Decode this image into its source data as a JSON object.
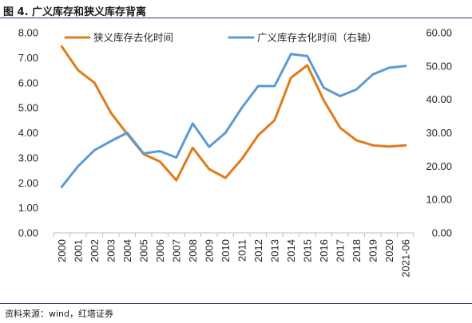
{
  "figure": {
    "title": "图 4. 广义库存和狭义库存背离",
    "source": "资料来源：wind，红塔证券"
  },
  "chart_data": {
    "type": "line",
    "categories": [
      "2000",
      "2001",
      "2002",
      "2003",
      "2004",
      "2005",
      "2006",
      "2007",
      "2008",
      "2009",
      "2010",
      "2011",
      "2012",
      "2013",
      "2014",
      "2015",
      "2016",
      "2017",
      "2018",
      "2019",
      "2020",
      "2021-06"
    ],
    "y_left": {
      "ylim": [
        0,
        8
      ],
      "ticks": [
        "0.00",
        "1.00",
        "2.00",
        "3.00",
        "4.00",
        "5.00",
        "6.00",
        "7.00",
        "8.00"
      ]
    },
    "y_right": {
      "ylim": [
        0,
        60
      ],
      "ticks": [
        "0.00",
        "10.00",
        "20.00",
        "30.00",
        "40.00",
        "50.00",
        "60.00"
      ]
    },
    "series": [
      {
        "name": "狭义库存去化时间",
        "axis": "left",
        "color": "#e07b1a",
        "values": [
          7.45,
          6.5,
          6.0,
          4.8,
          3.95,
          3.15,
          2.85,
          2.1,
          3.4,
          2.55,
          2.2,
          2.95,
          3.9,
          4.5,
          6.2,
          6.7,
          5.3,
          4.2,
          3.7,
          3.5,
          3.45,
          3.5
        ]
      },
      {
        "name": "广义库存去化时间（右轴）",
        "axis": "right",
        "color": "#5b9bd5",
        "values": [
          13.8,
          20.0,
          24.8,
          27.5,
          30.0,
          23.8,
          24.5,
          22.6,
          32.8,
          25.8,
          30.0,
          37.5,
          44.0,
          44.0,
          53.6,
          53.0,
          43.5,
          41.0,
          43.0,
          47.5,
          49.5,
          50.0
        ]
      }
    ],
    "legend": "top"
  }
}
